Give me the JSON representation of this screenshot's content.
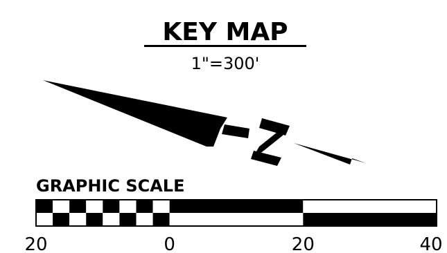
{
  "key_map": {
    "title": "KEY MAP",
    "scale_ratio": "1\"=300'"
  },
  "north_arrow": {
    "letter": "N"
  },
  "graphic_scale": {
    "title": "GRAPHIC SCALE",
    "tick_labels": [
      "20",
      "0",
      "20",
      "40"
    ],
    "min": -20,
    "max": 40,
    "sub_divisions": 4
  },
  "colors": {
    "ink": "#000000",
    "paper": "#ffffff"
  }
}
